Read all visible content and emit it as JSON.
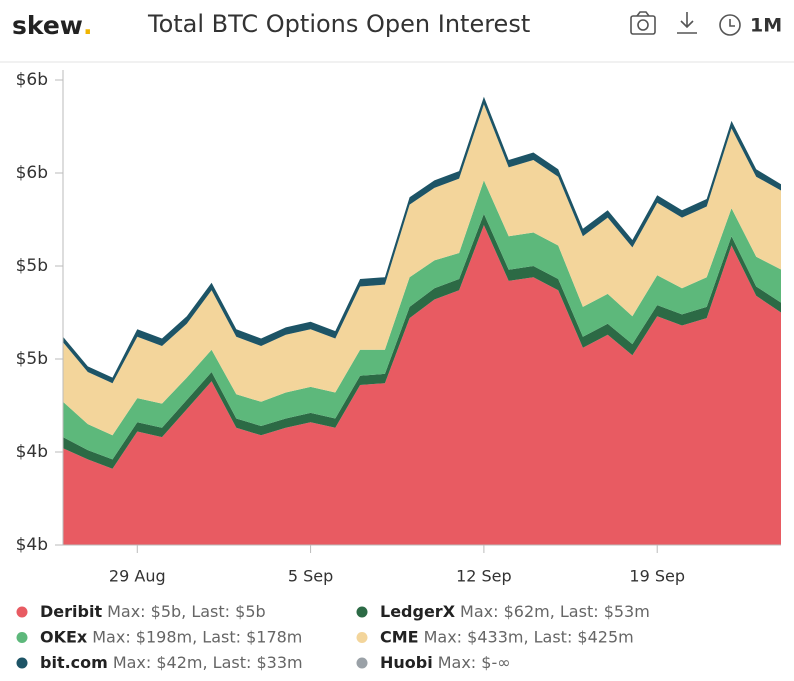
{
  "header": {
    "logo": "skew",
    "logo_dot": ".",
    "title": "Total BTC Options Open Interest",
    "range_button": "1M"
  },
  "chart_data": {
    "type": "stacked-area",
    "categories": [
      null,
      null,
      null,
      "29 Aug",
      null,
      null,
      null,
      null,
      null,
      null,
      "5 Sep",
      null,
      null,
      null,
      null,
      null,
      null,
      "12 Sep",
      null,
      null,
      null,
      null,
      null,
      null,
      "19 Sep",
      null,
      null,
      null,
      null,
      null
    ],
    "ylim": [
      3.5,
      6.0
    ],
    "yticks": [
      {
        "value": 3.5,
        "label": "$4b"
      },
      {
        "value": 4.0,
        "label": "$4b"
      },
      {
        "value": 4.5,
        "label": "$5b"
      },
      {
        "value": 5.0,
        "label": "$5b"
      },
      {
        "value": 5.5,
        "label": "$6b"
      },
      {
        "value": 6.0,
        "label": "$6b"
      }
    ],
    "series": [
      {
        "name": "Deribit",
        "summary": "Max: $5b, Last: $5b",
        "color": "#e85b62",
        "values": [
          4.02,
          3.96,
          3.91,
          4.11,
          4.08,
          4.23,
          4.38,
          4.13,
          4.09,
          4.13,
          4.16,
          4.13,
          4.36,
          4.37,
          4.72,
          4.82,
          4.87,
          5.22,
          4.92,
          4.94,
          4.87,
          4.56,
          4.63,
          4.52,
          4.73,
          4.68,
          4.72,
          5.11,
          4.84,
          4.75
        ]
      },
      {
        "name": "LedgerX",
        "summary": "Max: $62m, Last: $53m",
        "color": "#2c6a45",
        "values": [
          0.06,
          0.05,
          0.05,
          0.05,
          0.05,
          0.05,
          0.05,
          0.05,
          0.05,
          0.05,
          0.05,
          0.05,
          0.05,
          0.05,
          0.06,
          0.06,
          0.06,
          0.06,
          0.06,
          0.06,
          0.06,
          0.06,
          0.06,
          0.06,
          0.06,
          0.06,
          0.06,
          0.05,
          0.05,
          0.053
        ]
      },
      {
        "name": "OKEx",
        "summary": "Max: $198m, Last: $178m",
        "color": "#5db87b",
        "values": [
          0.19,
          0.14,
          0.13,
          0.13,
          0.13,
          0.12,
          0.12,
          0.13,
          0.13,
          0.14,
          0.14,
          0.14,
          0.14,
          0.13,
          0.16,
          0.15,
          0.14,
          0.18,
          0.18,
          0.18,
          0.18,
          0.16,
          0.16,
          0.15,
          0.16,
          0.14,
          0.16,
          0.15,
          0.16,
          0.178
        ]
      },
      {
        "name": "CME",
        "summary": "Max: $433m, Last: $425m",
        "color": "#f3d59b",
        "values": [
          0.32,
          0.28,
          0.28,
          0.33,
          0.31,
          0.29,
          0.32,
          0.31,
          0.3,
          0.31,
          0.31,
          0.29,
          0.34,
          0.35,
          0.39,
          0.39,
          0.4,
          0.41,
          0.37,
          0.39,
          0.37,
          0.38,
          0.41,
          0.37,
          0.39,
          0.38,
          0.38,
          0.43,
          0.43,
          0.425
        ]
      },
      {
        "name": "bit.com",
        "summary": "Max: $42m, Last: $33m",
        "color": "#1d5466",
        "values": [
          0.03,
          0.03,
          0.03,
          0.04,
          0.04,
          0.04,
          0.04,
          0.04,
          0.04,
          0.04,
          0.04,
          0.04,
          0.04,
          0.04,
          0.04,
          0.04,
          0.04,
          0.04,
          0.04,
          0.04,
          0.04,
          0.04,
          0.04,
          0.04,
          0.04,
          0.04,
          0.04,
          0.04,
          0.04,
          0.033
        ]
      },
      {
        "name": "Huobi",
        "summary": "Max: $-∞",
        "color": "#9aa1a7",
        "values": [
          null,
          null,
          null,
          null,
          null,
          null,
          null,
          null,
          null,
          null,
          null,
          null,
          null,
          null,
          null,
          null,
          null,
          null,
          null,
          null,
          null,
          null,
          null,
          null,
          null,
          null,
          null,
          null,
          null,
          null
        ]
      }
    ]
  }
}
